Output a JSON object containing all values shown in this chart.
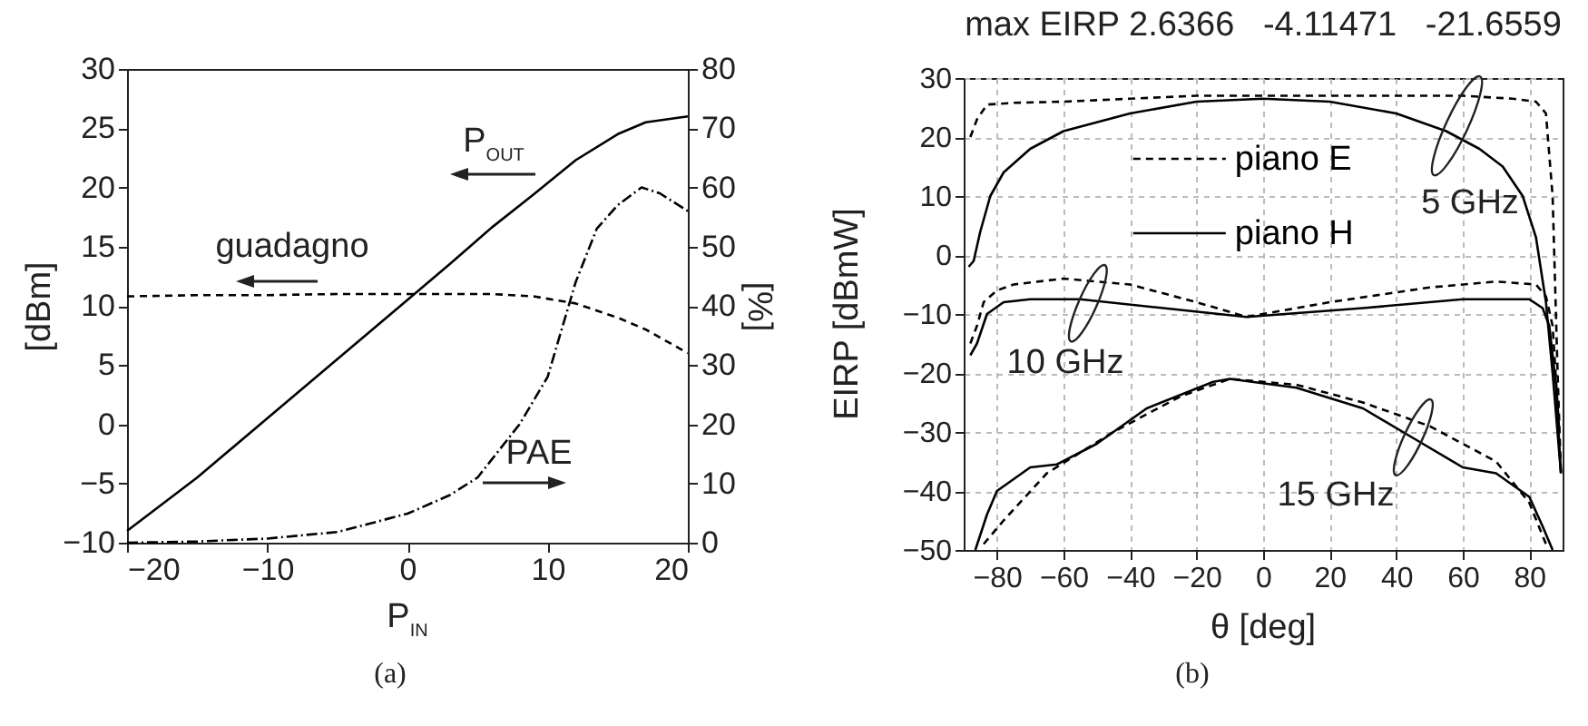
{
  "chart_data": [
    {
      "type": "line",
      "xlabel": "P$_{IN}$",
      "ylabel": "[dBm]",
      "y2label": "[%]",
      "x": [
        -20,
        -15,
        -10,
        -5,
        0,
        3,
        6,
        9,
        12,
        15,
        17,
        20
      ],
      "series": [
        {
          "color": "#000000",
          "line_style": "solid",
          "values": [
            -9,
            -4.5,
            0.5,
            5.5,
            10.5,
            13.5,
            16.6,
            19.4,
            22.3,
            24.5,
            25.5,
            26
          ]
        },
        {
          "color": "#000000",
          "line_style": "dashed",
          "values": [
            10.8,
            10.9,
            10.9,
            11,
            11,
            11,
            11,
            10.8,
            10.2,
            9,
            8,
            6
          ]
        },
        {
          "color": "#000000",
          "line_style": "dotted",
          "axis": "y2",
          "x": [
            -20,
            -15,
            -10,
            -5,
            0,
            3,
            5,
            6,
            8,
            10,
            12,
            13.5,
            15,
            16.7,
            18,
            20
          ],
          "values": [
            0,
            0.2,
            0.7,
            1.8,
            4.9,
            8,
            11,
            14,
            20,
            28,
            44,
            53,
            57,
            60,
            59,
            56
          ]
        }
      ],
      "xlim": [
        -20,
        20
      ],
      "xticks": [
        -20,
        -10,
        0,
        10,
        20
      ],
      "ylim": [
        -10,
        30
      ],
      "yticks": [
        -10,
        -5,
        0,
        5,
        10,
        15,
        20,
        25,
        30
      ],
      "y2lim": [
        0,
        80
      ],
      "y2ticks": [
        0,
        10,
        20,
        30,
        40,
        50,
        60,
        70,
        80
      ],
      "grid": false,
      "annotations": [
        "P$_{OUT}$",
        "guadagno",
        "PAE",
        "(a)"
      ]
    },
    {
      "type": "line",
      "title": "max EIRP 2.6366   -4.11471   -21.6559",
      "xlabel": "θ [deg]",
      "ylabel": "EIRP [dBmW]",
      "series": [
        {
          "name": "piano E",
          "color": "#000000",
          "line_style": "dashed",
          "x": [
            -88,
            -86,
            -83,
            -75,
            -60,
            -40,
            -20,
            0,
            20,
            40,
            60,
            75,
            82,
            85,
            87,
            88.5,
            89.5
          ],
          "values": [
            20,
            23,
            25.5,
            25.8,
            26,
            26.5,
            27,
            27,
            27,
            27,
            27,
            26.5,
            26,
            24,
            10,
            -20,
            -37
          ]
        },
        {
          "name": "piano H",
          "color": "#000000",
          "line_style": "solid",
          "x": [
            -88.5,
            -87,
            -85,
            -82,
            -78,
            -70,
            -60,
            -40,
            -20,
            0,
            20,
            40,
            55,
            65,
            72,
            78,
            82,
            85,
            87,
            89.5
          ],
          "values": [
            -2,
            -1,
            4,
            10,
            14,
            18,
            21,
            24,
            26,
            26.5,
            26,
            24,
            21,
            18,
            15,
            10,
            3,
            -8,
            -20,
            -37
          ]
        },
        {
          "color": "#000000",
          "line_style": "dashed",
          "x": [
            -88,
            -86,
            -84,
            -80,
            -75,
            -60,
            -40,
            -20,
            -5,
            20,
            50,
            70,
            82,
            85,
            87,
            89
          ],
          "values": [
            -15,
            -12,
            -8,
            -6,
            -5,
            -4,
            -5,
            -8,
            -10.5,
            -8,
            -5.5,
            -4.5,
            -5,
            -7,
            -12,
            -30
          ]
        },
        {
          "color": "#000000",
          "line_style": "solid",
          "x": [
            -88,
            -86,
            -83,
            -78,
            -70,
            -55,
            -30,
            -5,
            30,
            60,
            80,
            84,
            86,
            88,
            89.5
          ],
          "values": [
            -17,
            -15,
            -10,
            -8,
            -7.5,
            -7.5,
            -9,
            -10.5,
            -9,
            -7.5,
            -7.5,
            -9,
            -12,
            -22,
            -37
          ]
        },
        {
          "color": "#000000",
          "line_style": "dashed",
          "x": [
            -84,
            -78,
            -65,
            -45,
            -25,
            -10,
            10,
            30,
            50,
            70,
            80,
            85
          ],
          "values": [
            -49,
            -45,
            -37,
            -30,
            -24,
            -21,
            -22,
            -25,
            -29,
            -35,
            -42,
            -49
          ]
        },
        {
          "color": "#000000",
          "line_style": "solid",
          "x": [
            -86.5,
            -83,
            -80,
            -70,
            -62,
            -50,
            -35,
            -15,
            -10,
            10,
            30,
            45,
            60,
            70,
            80,
            84,
            87
          ],
          "values": [
            -50,
            -44,
            -40,
            -36,
            -35.5,
            -32,
            -26,
            -21.5,
            -21,
            -22.5,
            -26,
            -31,
            -36,
            -37,
            -41,
            -46,
            -50
          ]
        }
      ],
      "xlim": [
        -90,
        90
      ],
      "xticks": [
        -80,
        -60,
        -40,
        -20,
        0,
        20,
        40,
        60,
        80
      ],
      "ylim": [
        -50,
        30
      ],
      "yticks": [
        -50,
        -40,
        -30,
        -20,
        -10,
        0,
        10,
        20,
        30
      ],
      "grid": true,
      "legend": "top",
      "annotations": [
        "5 GHz",
        "10 GHz",
        "15 GHz",
        "(b)"
      ]
    }
  ]
}
